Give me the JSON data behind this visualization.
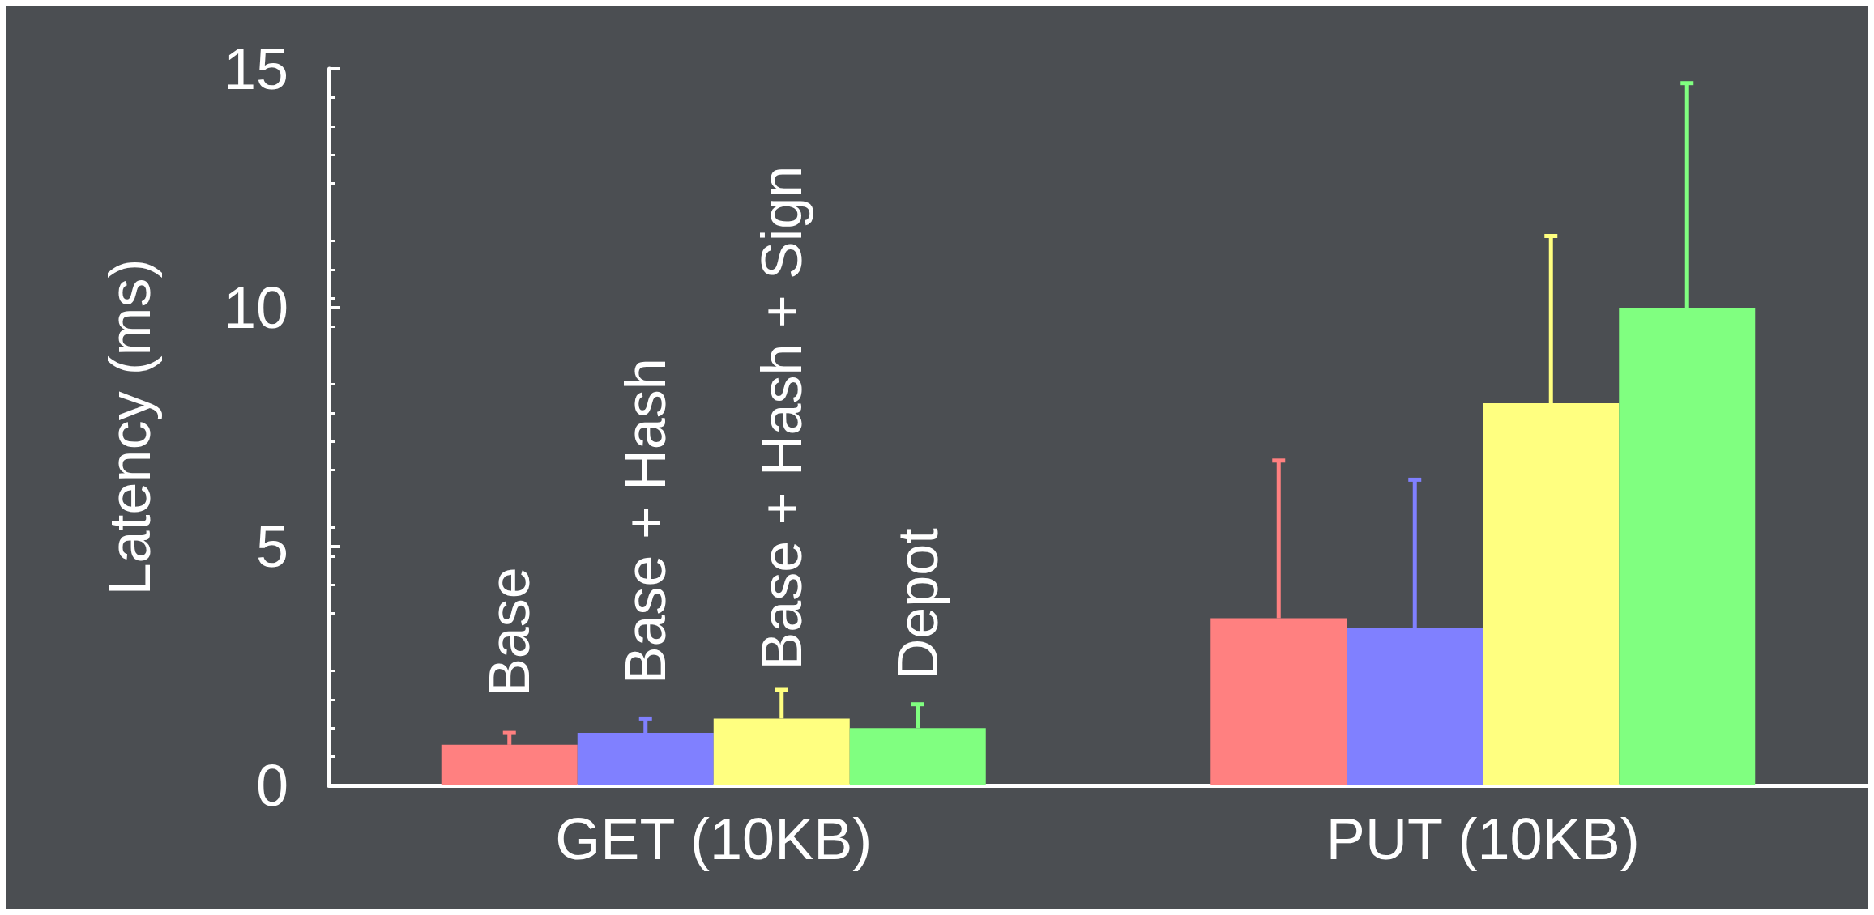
{
  "chart_data": {
    "type": "bar",
    "ylabel": "Latency (ms)",
    "categories": [
      "GET (10KB)",
      "PUT (10KB)"
    ],
    "series": [
      {
        "name": "Base",
        "color": "#ff8080",
        "values": [
          0.85,
          3.5
        ],
        "errors": [
          [
            0.85,
            1.1
          ],
          [
            3.5,
            6.8
          ]
        ]
      },
      {
        "name": "Base + Hash",
        "color": "#8080ff",
        "values": [
          1.1,
          3.3
        ],
        "errors": [
          [
            1.1,
            1.4
          ],
          [
            3.3,
            6.4
          ]
        ]
      },
      {
        "name": "Base + Hash + Sign",
        "color": "#ffff80",
        "values": [
          1.4,
          8.0
        ],
        "errors": [
          [
            1.4,
            2.0
          ],
          [
            8.0,
            11.5
          ]
        ]
      },
      {
        "name": "Depot",
        "color": "#80ff80",
        "values": [
          1.2,
          10.0
        ],
        "errors": [
          [
            1.2,
            1.7
          ],
          [
            10.0,
            14.7
          ]
        ]
      }
    ],
    "ylim": [
      0,
      15
    ],
    "yticks": [
      0,
      5,
      10,
      15
    ],
    "grid": false,
    "legend": false
  }
}
